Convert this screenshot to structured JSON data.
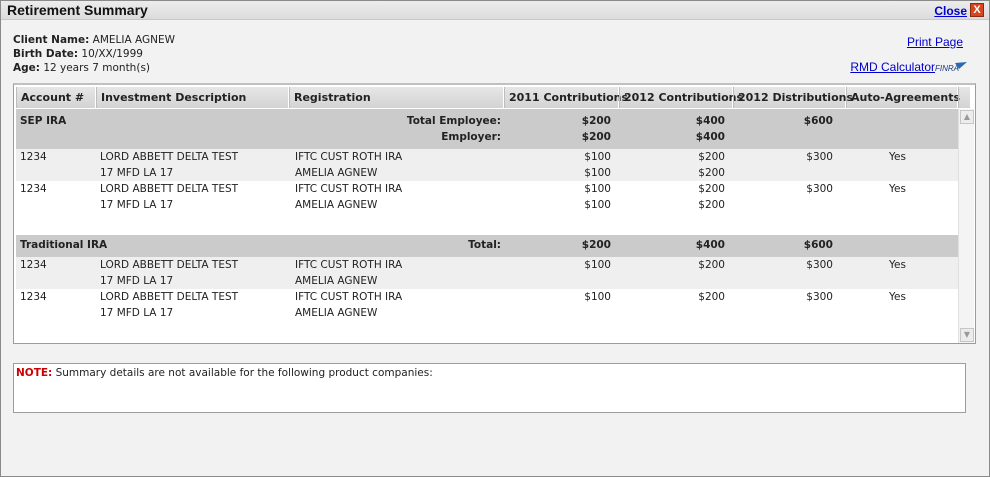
{
  "window": {
    "title": "Retirement Summary",
    "close_label": "Close",
    "close_x": "X"
  },
  "client": {
    "name_label": "Client Name:",
    "name": "AMELIA AGNEW",
    "birth_label": "Birth Date:",
    "birth": "10/XX/1999",
    "age_label": "Age:",
    "age": "12 years 7 month(s)"
  },
  "links": {
    "print": "Print Page",
    "rmd": "RMD Calculator",
    "finra": "FINRA"
  },
  "table": {
    "headers": [
      "Account #",
      "Investment Description",
      "Registration",
      "2011 Contributions",
      "2012 Contributions",
      "2012 Distributions",
      "Auto-Agreements"
    ],
    "sep": {
      "name": "SEP IRA",
      "total_employee_label": "Total Employee:",
      "employer_label": "Employer:",
      "emp_2011": "$200",
      "emp_2012": "$400",
      "dist_2012": "$600",
      "er_2011": "$200",
      "er_2012": "$400",
      "rows": [
        {
          "account": "1234",
          "desc1": "LORD ABBETT DELTA TEST",
          "desc2": "17 MFD LA 17",
          "reg1": "IFTC CUST ROTH IRA",
          "reg2": "AMELIA AGNEW",
          "c2011a": "$100",
          "c2011b": "$100",
          "c2012a": "$200",
          "c2012b": "$200",
          "dist": "$300",
          "auto": "Yes"
        },
        {
          "account": "1234",
          "desc1": "LORD ABBETT DELTA TEST",
          "desc2": "17 MFD LA 17",
          "reg1": "IFTC CUST ROTH IRA",
          "reg2": "AMELIA AGNEW",
          "c2011a": "$100",
          "c2011b": "$100",
          "c2012a": "$200",
          "c2012b": "$200",
          "dist": "$300",
          "auto": "Yes"
        }
      ]
    },
    "trad": {
      "name": "Traditional IRA",
      "total_label": "Total:",
      "c2011": "$200",
      "c2012": "$400",
      "dist": "$600",
      "rows": [
        {
          "account": "1234",
          "desc1": "LORD ABBETT DELTA TEST",
          "desc2": "17 MFD LA 17",
          "reg1": "IFTC CUST ROTH IRA",
          "reg2": "AMELIA AGNEW",
          "c2011": "$100",
          "c2012": "$200",
          "dist": "$300",
          "auto": "Yes"
        },
        {
          "account": "1234",
          "desc1": "LORD ABBETT DELTA TEST",
          "desc2": "17 MFD LA 17",
          "reg1": "IFTC CUST ROTH IRA",
          "reg2": "AMELIA AGNEW",
          "c2011": "$100",
          "c2012": "$200",
          "dist": "$300",
          "auto": "Yes"
        }
      ]
    }
  },
  "note": {
    "label": "NOTE:",
    "text": "Summary details are not available for the following product companies:"
  }
}
